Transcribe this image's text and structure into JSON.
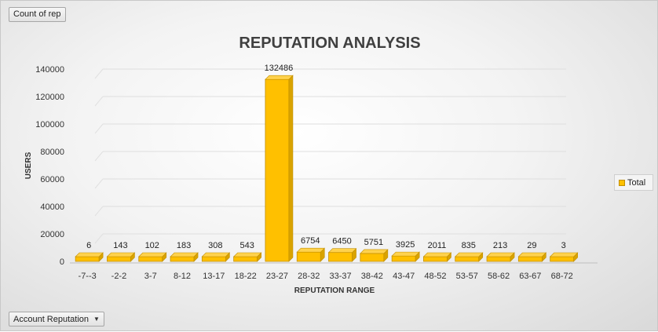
{
  "pivot_fields": {
    "value_field": "Count of rep",
    "row_field": "Account Reputation"
  },
  "legend": {
    "label": "Total"
  },
  "colors": {
    "bar": "#ffc000",
    "bar_top": "#ffd24d",
    "bar_side": "#d9a300",
    "bar_edge": "#c28f00"
  },
  "chart_data": {
    "type": "bar",
    "title": "REPUTATION ANALYSIS",
    "xlabel": "REPUTATION RANGE",
    "ylabel": "USERS",
    "ylim": [
      0,
      140000
    ],
    "yticks": [
      0,
      20000,
      40000,
      60000,
      80000,
      100000,
      120000,
      140000
    ],
    "categories": [
      "-7--3",
      "-2-2",
      "3-7",
      "8-12",
      "13-17",
      "18-22",
      "23-27",
      "28-32",
      "33-37",
      "38-42",
      "43-47",
      "48-52",
      "53-57",
      "58-62",
      "63-67",
      "68-72"
    ],
    "series": [
      {
        "name": "Total",
        "values": [
          6,
          143,
          102,
          183,
          308,
          543,
          132486,
          6754,
          6450,
          5751,
          3925,
          2011,
          835,
          213,
          29,
          3
        ]
      }
    ],
    "grid": true,
    "legend_position": "right"
  }
}
